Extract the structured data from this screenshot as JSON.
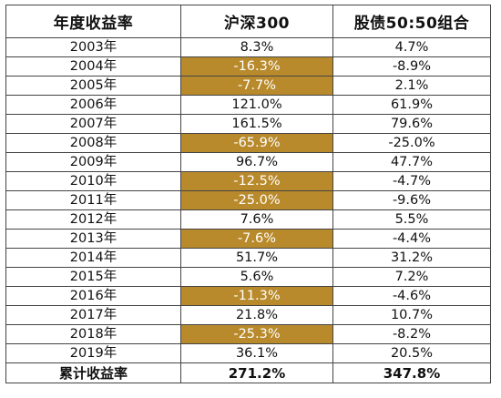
{
  "table": {
    "headers": [
      "年度收益率",
      "沪深300",
      "股债50:50组合"
    ],
    "rows": [
      {
        "year": "2003年",
        "hs300": "8.3%",
        "combo": "4.7%",
        "highlight": false
      },
      {
        "year": "2004年",
        "hs300": "-16.3%",
        "combo": "-8.9%",
        "highlight": true
      },
      {
        "year": "2005年",
        "hs300": "-7.7%",
        "combo": "2.1%",
        "highlight": true
      },
      {
        "year": "2006年",
        "hs300": "121.0%",
        "combo": "61.9%",
        "highlight": false
      },
      {
        "year": "2007年",
        "hs300": "161.5%",
        "combo": "79.6%",
        "highlight": false
      },
      {
        "year": "2008年",
        "hs300": "-65.9%",
        "combo": "-25.0%",
        "highlight": true
      },
      {
        "year": "2009年",
        "hs300": "96.7%",
        "combo": "47.7%",
        "highlight": false
      },
      {
        "year": "2010年",
        "hs300": "-12.5%",
        "combo": "-4.7%",
        "highlight": true
      },
      {
        "year": "2011年",
        "hs300": "-25.0%",
        "combo": "-9.6%",
        "highlight": true
      },
      {
        "year": "2012年",
        "hs300": "7.6%",
        "combo": "5.5%",
        "highlight": false
      },
      {
        "year": "2013年",
        "hs300": "-7.6%",
        "combo": "-4.4%",
        "highlight": true
      },
      {
        "year": "2014年",
        "hs300": "51.7%",
        "combo": "31.2%",
        "highlight": false
      },
      {
        "year": "2015年",
        "hs300": "5.6%",
        "combo": "7.2%",
        "highlight": false
      },
      {
        "year": "2016年",
        "hs300": "-11.3%",
        "combo": "-4.6%",
        "highlight": true
      },
      {
        "year": "2017年",
        "hs300": "21.8%",
        "combo": "10.7%",
        "highlight": false
      },
      {
        "year": "2018年",
        "hs300": "-25.3%",
        "combo": "-8.2%",
        "highlight": true
      },
      {
        "year": "2019年",
        "hs300": "36.1%",
        "combo": "20.5%",
        "highlight": false
      }
    ],
    "total": {
      "label": "累计收益率",
      "hs300": "271.2%",
      "combo": "347.8%"
    }
  },
  "colors": {
    "highlight_fill": "#b88a2c",
    "highlight_text": "#ffffff",
    "border": "#444444"
  }
}
